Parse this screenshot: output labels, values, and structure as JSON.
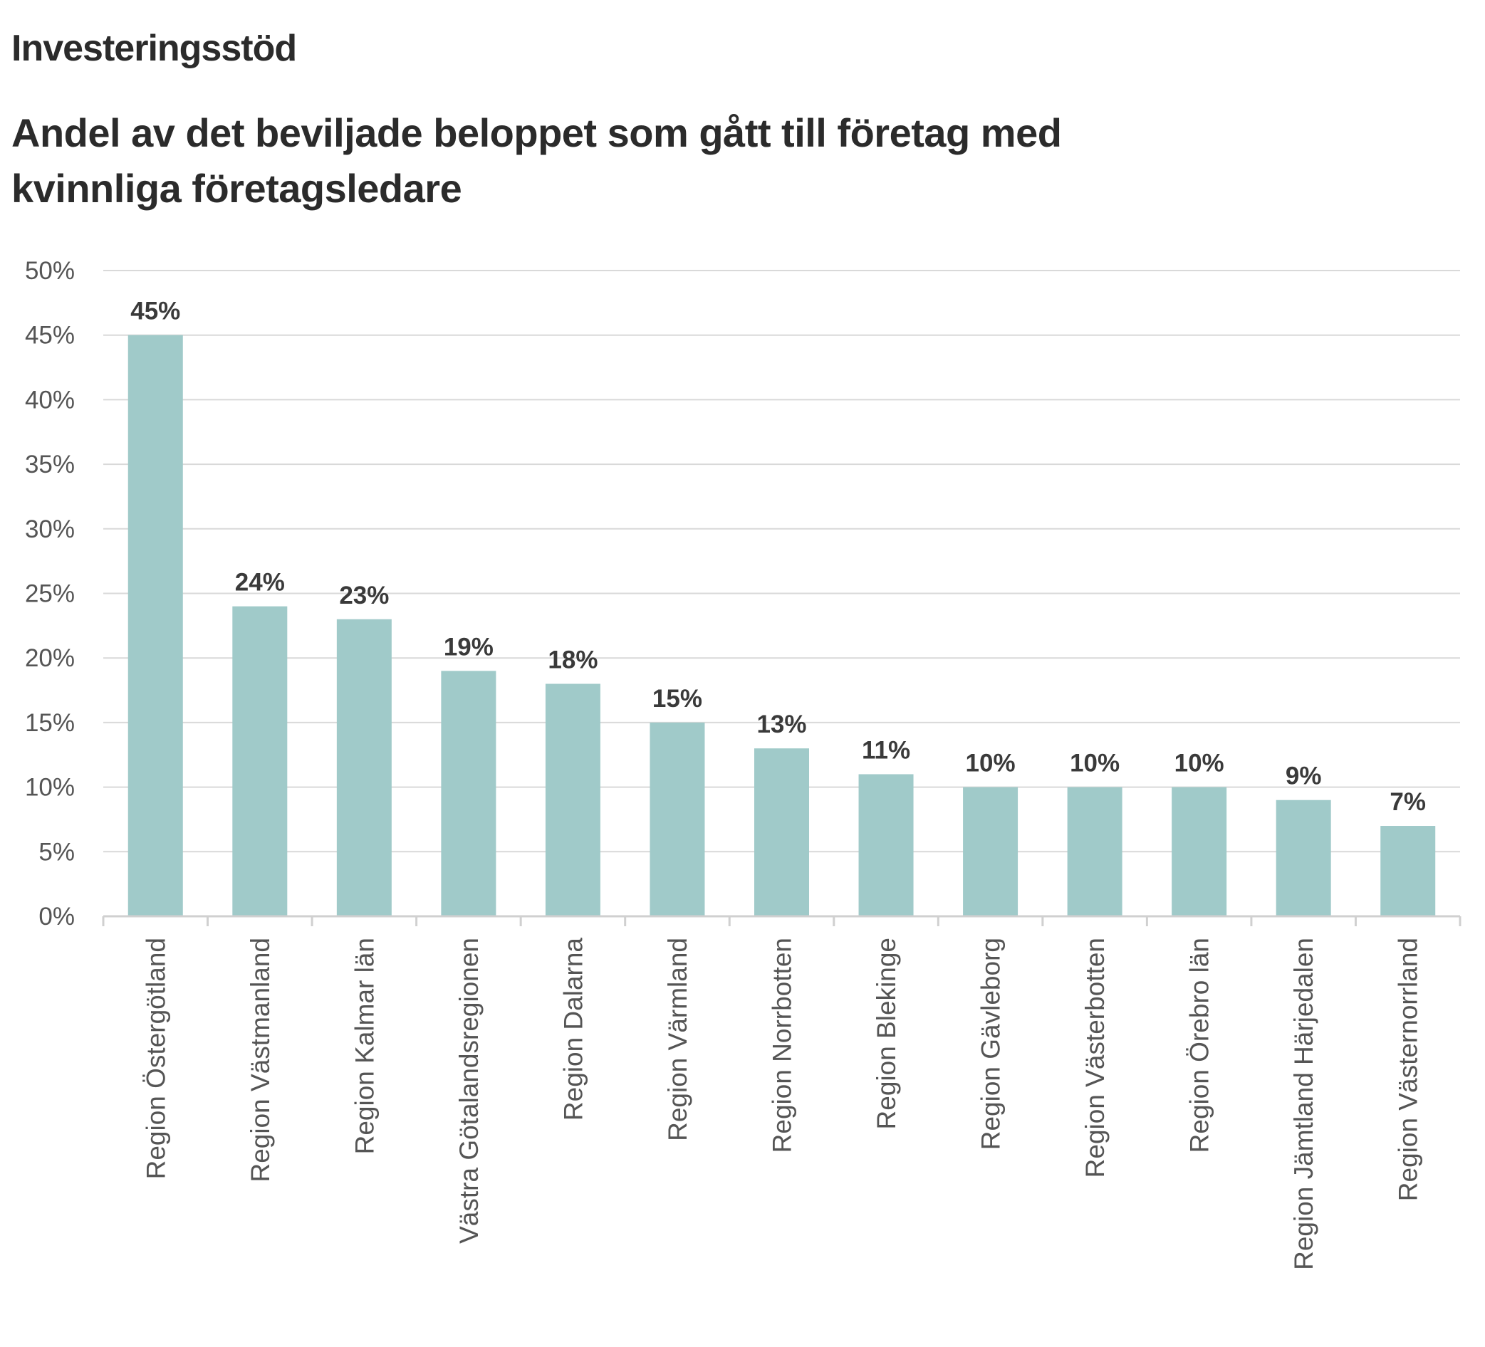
{
  "header": {
    "title": "Investeringsstöd",
    "subtitle": "Andel av det beviljade beloppet som gått till företag med kvinnliga företagsledare"
  },
  "chart_data": {
    "type": "bar",
    "title": "Investeringsstöd",
    "subtitle": "Andel av det beviljade beloppet som gått till företag med kvinnliga företagsledare",
    "xlabel": "",
    "ylabel": "",
    "categories": [
      "Region Östergötland",
      "Region Västmanland",
      "Region Kalmar län",
      "Västra Götalandsregionen",
      "Region Dalarna",
      "Region Värmland",
      "Region Norrbotten",
      "Region Blekinge",
      "Region Gävleborg",
      "Region Västerbotten",
      "Region Örebro län",
      "Region Jämtland Härjedalen",
      "Region Västernorrland"
    ],
    "values": [
      45,
      24,
      23,
      19,
      18,
      15,
      13,
      11,
      10,
      10,
      10,
      9,
      7
    ],
    "data_labels": [
      "45%",
      "24%",
      "23%",
      "19%",
      "18%",
      "15%",
      "13%",
      "11%",
      "10%",
      "10%",
      "10%",
      "9%",
      "7%"
    ],
    "ylim": [
      0,
      50
    ],
    "yticks": [
      0,
      5,
      10,
      15,
      20,
      25,
      30,
      35,
      40,
      45,
      50
    ],
    "ytick_labels": [
      "0%",
      "5%",
      "10%",
      "15%",
      "20%",
      "25%",
      "30%",
      "35%",
      "40%",
      "45%",
      "50%"
    ],
    "grid": true,
    "legend": "none",
    "colors": {
      "bar": "#a0cac9",
      "grid": "#d9d9d9",
      "axis": "#d0d0d0"
    }
  }
}
